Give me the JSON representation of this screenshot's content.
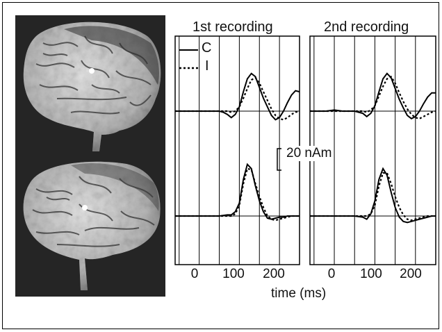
{
  "panels": [
    {
      "title": "1st recording"
    },
    {
      "title": "2nd recording"
    }
  ],
  "legend": [
    {
      "label": "C",
      "style": "solid"
    },
    {
      "label": "I",
      "style": "dotted"
    }
  ],
  "scale_bar": {
    "label": "20 nAm"
  },
  "x_axis": {
    "title": "time (ms)",
    "ticks": [
      "0",
      "100",
      "200"
    ]
  },
  "chart_data": {
    "type": "line",
    "xlabel": "time (ms)",
    "xlim": [
      -60,
      250
    ],
    "ticks": [
      0,
      100,
      200
    ],
    "scale_bar_nAm": 20,
    "panels": [
      {
        "title": "1st recording",
        "rows": [
          {
            "series": [
              {
                "name": "C",
                "x": [
                  -60,
                  -20,
                  0,
                  20,
                  50,
                  60,
                  70,
                  80,
                  90,
                  100,
                  110,
                  120,
                  130,
                  140,
                  150,
                  160,
                  170,
                  180,
                  190,
                  200,
                  210,
                  220,
                  230,
                  240,
                  250
                ],
                "y": [
                  0,
                  0,
                  0,
                  0,
                  0,
                  -1,
                  -3,
                  -6,
                  -3,
                  4,
                  18,
                  30,
                  35,
                  32,
                  22,
                  12,
                  4,
                  -4,
                  -8,
                  -6,
                  0,
                  8,
                  15,
                  19,
                  18
                ]
              },
              {
                "name": "I",
                "x": [
                  -60,
                  -20,
                  0,
                  20,
                  50,
                  60,
                  70,
                  80,
                  90,
                  100,
                  110,
                  120,
                  130,
                  140,
                  150,
                  160,
                  170,
                  180,
                  190,
                  200,
                  210,
                  220,
                  230,
                  240,
                  250
                ],
                "y": [
                  0,
                  0,
                  0,
                  0,
                  0,
                  0,
                  0,
                  -1,
                  0,
                  4,
                  12,
                  21,
                  29,
                  31,
                  26,
                  18,
                  10,
                  2,
                  -4,
                  -7,
                  -8,
                  -6,
                  -3,
                  -1,
                  0
                ]
              }
            ]
          },
          {
            "series": [
              {
                "name": "C",
                "x": [
                  -60,
                  -20,
                  0,
                  20,
                  50,
                  70,
                  80,
                  90,
                  100,
                  110,
                  120,
                  130,
                  140,
                  150,
                  160,
                  170,
                  180,
                  190,
                  200,
                  210,
                  220,
                  230,
                  240,
                  250
                ],
                "y": [
                  0,
                  0,
                  0,
                  0,
                  0,
                  1,
                  1,
                  4,
                  12,
                  34,
                  48,
                  44,
                  28,
                  14,
                  4,
                  -2,
                  -3,
                  -2,
                  -1,
                  -1,
                  0,
                  0,
                  0,
                  0
                ]
              },
              {
                "name": "I",
                "x": [
                  -60,
                  -20,
                  0,
                  20,
                  50,
                  70,
                  80,
                  90,
                  100,
                  110,
                  120,
                  130,
                  140,
                  150,
                  160,
                  170,
                  180,
                  190,
                  200,
                  210,
                  220,
                  230,
                  240,
                  250
                ],
                "y": [
                  0,
                  0,
                  0,
                  0,
                  0,
                  0,
                  0,
                  2,
                  10,
                  30,
                  44,
                  43,
                  30,
                  18,
                  8,
                  0,
                  -3,
                  -4,
                  -3,
                  -2,
                  -1,
                  0,
                  0,
                  0
                ]
              }
            ]
          }
        ]
      },
      {
        "title": "2nd recording",
        "rows": [
          {
            "series": [
              {
                "name": "C",
                "x": [
                  -60,
                  -20,
                  0,
                  20,
                  50,
                  60,
                  70,
                  80,
                  90,
                  100,
                  110,
                  120,
                  130,
                  140,
                  150,
                  160,
                  170,
                  180,
                  190,
                  200,
                  210,
                  220,
                  230,
                  240,
                  250
                ],
                "y": [
                  0,
                  0,
                  1,
                  0,
                  0,
                  -1,
                  -2,
                  -5,
                  -2,
                  5,
                  18,
                  30,
                  35,
                  31,
                  21,
                  11,
                  3,
                  -4,
                  -7,
                  -5,
                  0,
                  7,
                  13,
                  17,
                  17
                ]
              },
              {
                "name": "I",
                "x": [
                  -60,
                  -20,
                  0,
                  20,
                  50,
                  60,
                  70,
                  80,
                  90,
                  100,
                  110,
                  120,
                  130,
                  140,
                  150,
                  160,
                  170,
                  180,
                  190,
                  200,
                  210,
                  220,
                  230,
                  240,
                  250
                ],
                "y": [
                  0,
                  0,
                  0,
                  0,
                  0,
                  0,
                  0,
                  -1,
                  1,
                  5,
                  14,
                  23,
                  30,
                  32,
                  26,
                  17,
                  9,
                  2,
                  -3,
                  -6,
                  -7,
                  -5,
                  -3,
                  -1,
                  0
                ]
              }
            ]
          },
          {
            "series": [
              {
                "name": "C",
                "x": [
                  -60,
                  -20,
                  0,
                  20,
                  50,
                  70,
                  80,
                  90,
                  100,
                  110,
                  120,
                  130,
                  140,
                  150,
                  160,
                  170,
                  180,
                  190,
                  200,
                  210,
                  220,
                  230,
                  240,
                  250
                ],
                "y": [
                  0,
                  0,
                  0,
                  0,
                  0,
                  -1,
                  -3,
                  2,
                  14,
                  34,
                  44,
                  38,
                  22,
                  8,
                  -1,
                  -5,
                  -6,
                  -5,
                  -4,
                  -3,
                  -2,
                  -1,
                  0,
                  0
                ]
              },
              {
                "name": "I",
                "x": [
                  -60,
                  -20,
                  0,
                  20,
                  50,
                  70,
                  80,
                  90,
                  100,
                  110,
                  120,
                  130,
                  140,
                  150,
                  160,
                  170,
                  180,
                  190,
                  200,
                  210,
                  220,
                  230,
                  240,
                  250
                ],
                "y": [
                  0,
                  0,
                  0,
                  0,
                  0,
                  0,
                  0,
                  2,
                  10,
                  28,
                  40,
                  40,
                  30,
                  18,
                  8,
                  1,
                  -3,
                  -4,
                  -3,
                  -2,
                  -1,
                  0,
                  0,
                  0
                ]
              }
            ]
          }
        ]
      }
    ]
  }
}
